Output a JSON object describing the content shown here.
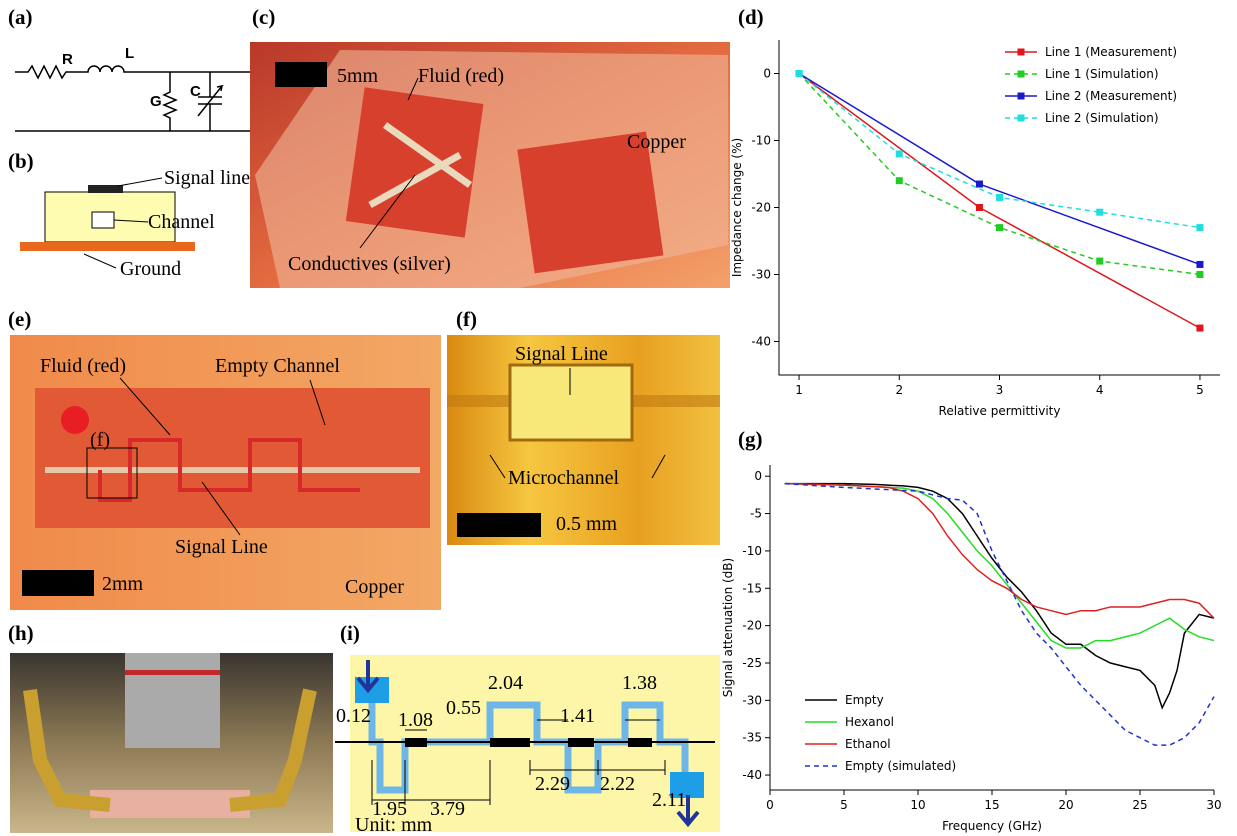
{
  "panels": {
    "a": "(a)",
    "b": "(b)",
    "c": "(c)",
    "d": "(d)",
    "e": "(e)",
    "f": "(f)",
    "g": "(g)",
    "h": "(h)",
    "i": "(i)"
  },
  "circuit": {
    "r": "R",
    "l": "L",
    "g": "G",
    "c": "C"
  },
  "cross_section": {
    "signal": "Signal line",
    "channel": "Channel",
    "ground": "Ground"
  },
  "photo_c": {
    "scale": "5mm",
    "fluid": "Fluid (red)",
    "copper": "Copper",
    "conductive": "Conductives (silver)"
  },
  "photo_e": {
    "fluid": "Fluid (red)",
    "empty": "Empty Channel",
    "f": "(f)",
    "signal": "Signal Line",
    "scale": "2mm",
    "copper": "Copper"
  },
  "photo_f": {
    "signal": "Signal Line",
    "micro": "Microchannel",
    "scale": "0.5 mm"
  },
  "diagram_i": {
    "dims": [
      "0.12",
      "1.08",
      "0.55",
      "2.04",
      "1.41",
      "1.38",
      "1.95",
      "3.79",
      "2.29",
      "2.22",
      "2.11"
    ],
    "unit": "Unit: mm"
  },
  "chart_data": [
    {
      "type": "line",
      "x_label": "Relative permittivity",
      "y_label": "Impedance change (%)",
      "xlim": [
        0.8,
        5.2
      ],
      "xticks": [
        1,
        2,
        3,
        4,
        5
      ],
      "ylim": [
        -45,
        5
      ],
      "yticks": [
        0,
        -10,
        -20,
        -30,
        -40
      ],
      "legend": "upper right",
      "markers": true,
      "series": [
        {
          "name": "Line 1 (Measurement)",
          "color": "#e0161b",
          "dashed": false,
          "x": [
            1,
            2.8,
            5
          ],
          "values": [
            0,
            -20,
            -38
          ]
        },
        {
          "name": "Line 1 (Simulation)",
          "color": "#22cc22",
          "dashed": true,
          "x": [
            1,
            2,
            3,
            4,
            5
          ],
          "values": [
            0,
            -16,
            -23,
            -28,
            -30
          ]
        },
        {
          "name": "Line 2 (Measurement)",
          "color": "#1a1acc",
          "dashed": false,
          "x": [
            1,
            2.8,
            5
          ],
          "values": [
            0,
            -16.5,
            -28.5
          ]
        },
        {
          "name": "Line 2 (Simulation)",
          "color": "#1edede",
          "dashed": true,
          "x": [
            1,
            2,
            3,
            4,
            5
          ],
          "values": [
            0,
            -12,
            -18.5,
            -20.7,
            -23
          ]
        }
      ]
    },
    {
      "type": "line",
      "x_label": "Frequency (GHz)",
      "y_label": "Signal attenuation (dB)",
      "xlim": [
        0,
        30
      ],
      "xticks": [
        0,
        5,
        10,
        15,
        20,
        25,
        30
      ],
      "ylim": [
        -42,
        1.5
      ],
      "yticks": [
        0,
        -5,
        -10,
        -15,
        -20,
        -25,
        -30,
        -35,
        -40
      ],
      "legend": "lower left",
      "markers": false,
      "series": [
        {
          "name": "Empty",
          "color": "#000000",
          "dashed": false,
          "x": [
            1,
            3,
            5,
            7,
            8,
            9,
            10,
            11,
            12,
            13,
            14,
            15,
            16,
            17,
            18,
            19,
            20,
            21,
            22,
            23,
            24,
            25,
            26,
            26.5,
            27,
            27.5,
            28,
            29,
            30
          ],
          "values": [
            -1,
            -1,
            -1,
            -1.1,
            -1.2,
            -1.3,
            -1.5,
            -2,
            -3,
            -5,
            -8,
            -11,
            -13.5,
            -15.5,
            -18,
            -21,
            -22.5,
            -22.5,
            -24,
            -25,
            -25.5,
            -26,
            -28,
            -31,
            -29,
            -26,
            -21,
            -18.5,
            -19
          ]
        },
        {
          "name": "Hexanol",
          "color": "#22dd22",
          "dashed": false,
          "x": [
            1,
            3,
            5,
            7,
            8,
            9,
            10,
            11,
            12,
            13,
            14,
            15,
            16,
            17,
            18,
            19,
            20,
            21,
            22,
            23,
            24,
            25,
            26,
            27,
            28,
            29,
            30
          ],
          "values": [
            -1,
            -1.1,
            -1.2,
            -1.4,
            -1.5,
            -1.6,
            -2,
            -3,
            -5,
            -7.5,
            -10,
            -12,
            -14.5,
            -17,
            -19.5,
            -22,
            -23,
            -23,
            -22,
            -22,
            -21.5,
            -21,
            -20,
            -19,
            -20.5,
            -21.5,
            -22
          ]
        },
        {
          "name": "Ethanol",
          "color": "#dd2222",
          "dashed": false,
          "x": [
            1,
            3,
            5,
            7,
            8,
            9,
            10,
            11,
            12,
            13,
            14,
            15,
            16,
            17,
            18,
            19,
            20,
            21,
            22,
            23,
            24,
            25,
            26,
            27,
            28,
            29,
            30
          ],
          "values": [
            -1,
            -1.1,
            -1.2,
            -1.4,
            -1.5,
            -2,
            -3,
            -5,
            -8,
            -10.5,
            -12.5,
            -14,
            -15,
            -16.5,
            -17.5,
            -18,
            -18.5,
            -18,
            -18,
            -17.5,
            -17.5,
            -17.5,
            -17,
            -16.5,
            -16.5,
            -17,
            -19
          ]
        },
        {
          "name": "Empty (simulated)",
          "color": "#2233cc",
          "dashed": true,
          "x": [
            1,
            5,
            10,
            12,
            13,
            14,
            15,
            16,
            17,
            18,
            19,
            20,
            21,
            22,
            23,
            24,
            25,
            26,
            27,
            28,
            29,
            30
          ],
          "values": [
            -1,
            -1.5,
            -2,
            -3,
            -3.2,
            -5,
            -10,
            -14,
            -18,
            -21,
            -23,
            -25.5,
            -28,
            -30,
            -32,
            -34,
            -35,
            -36,
            -36,
            -35,
            -33,
            -29.5
          ]
        }
      ]
    }
  ]
}
